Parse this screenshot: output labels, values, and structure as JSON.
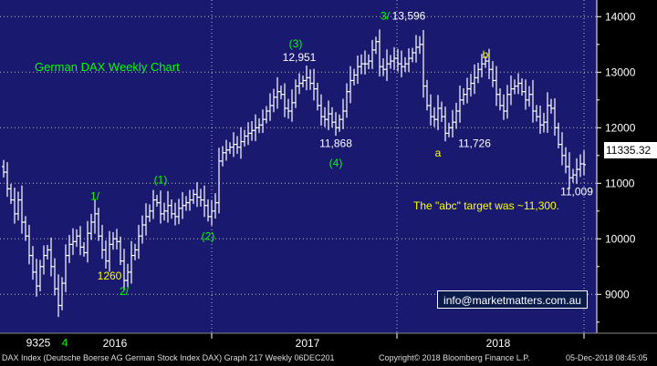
{
  "chart_data": {
    "type": "ohlc",
    "title": "German DAX Weekly Chart",
    "ylim": [
      8300,
      14300
    ],
    "yticks": [
      9000,
      10000,
      11000,
      12000,
      13000,
      14000
    ],
    "xlabels": [
      "2016",
      "2017",
      "2018"
    ],
    "last_price": "11335.32",
    "grid": true,
    "series": [
      {
        "values": [
          11200,
          10900,
          10700,
          10450,
          10700,
          10300,
          10050,
          9700,
          9400,
          9150,
          9500,
          9700,
          9800,
          9500,
          9100,
          8800,
          9200,
          9700,
          9900,
          9950,
          10050,
          9850,
          9750,
          10100,
          10300,
          10450,
          10050,
          9800,
          9600,
          9900,
          10000,
          9950,
          9600,
          9250,
          9400,
          9700,
          9800,
          10050,
          10250,
          10400,
          10500,
          10700,
          10650,
          10450,
          10500,
          10600,
          10450,
          10400,
          10550,
          10600,
          10650,
          10700,
          10800,
          10750,
          10700,
          10600,
          10400,
          10500,
          10650,
          11400,
          11550,
          11600,
          11650,
          11700,
          11650,
          11750,
          11850,
          11900,
          11950,
          12000,
          12050,
          12150,
          12300,
          12400,
          12550,
          12650,
          12600,
          12350,
          12300,
          12450,
          12750,
          12800,
          12850,
          12900,
          12800,
          12700,
          12400,
          12200,
          12150,
          12250,
          12100,
          12000,
          12150,
          12300,
          12650,
          12850,
          12950,
          13100,
          13150,
          13150,
          13200,
          13400,
          13550,
          13100,
          13050,
          13150,
          13200,
          13250,
          13150,
          13100,
          13150,
          13250,
          13350,
          13450,
          13500,
          12750,
          12400,
          12200,
          12150,
          12350,
          12200,
          11900,
          12000,
          12100,
          12300,
          12500,
          12600,
          12700,
          12800,
          12900,
          13050,
          13150,
          13200,
          13050,
          12850,
          12600,
          12400,
          12300,
          12600,
          12700,
          12750,
          12800,
          12650,
          12500,
          12600,
          12300,
          12200,
          12050,
          12100,
          12400,
          12350,
          12000,
          11700,
          11500,
          11300,
          11100,
          11150,
          11250,
          11350,
          11335
        ]
      }
    ],
    "annotations": [
      {
        "text": "9325",
        "color": "#ffffff",
        "x_idx": 15,
        "y": 8520
      },
      {
        "text": "4",
        "color": "#00ff00",
        "x_idx": 15,
        "y": 8520
      },
      {
        "text": "1/",
        "color": "#00ff00",
        "x_idx": 25,
        "y": 10700
      },
      {
        "text": "1260",
        "color": "#ffff00",
        "x_idx": 29,
        "y": 9270
      },
      {
        "text": "2/",
        "color": "#00ff00",
        "x_idx": 33,
        "y": 8990
      },
      {
        "text": "(1)",
        "color": "#00ff00",
        "x_idx": 43,
        "y": 11000
      },
      {
        "text": "(2)",
        "color": "#00ff00",
        "x_idx": 56,
        "y": 9980
      },
      {
        "text": "(3)",
        "color": "#00ff00",
        "x_idx": 81,
        "y": 13450
      },
      {
        "text": "12,951",
        "color": "#ffffff",
        "x_idx": 81,
        "y": 13200
      },
      {
        "text": "11,868",
        "color": "#ffffff",
        "x_idx": 91,
        "y": 11650
      },
      {
        "text": "(4)",
        "color": "#00ff00",
        "x_idx": 91,
        "y": 11300
      },
      {
        "text": "3/",
        "color": "#00ff00",
        "x_idx": 103,
        "y": 13950
      },
      {
        "text": "13,596",
        "color": "#ffffff",
        "x_idx": 111,
        "y": 13950
      },
      {
        "text": "a",
        "color": "#ffff00",
        "x_idx": 119,
        "y": 11480
      },
      {
        "text": "11,726",
        "color": "#ffffff",
        "x_idx": 129,
        "y": 11650
      },
      {
        "text": "b",
        "color": "#ffff00",
        "x_idx": 132,
        "y": 13250
      },
      {
        "text": "11,009",
        "color": "#ffffff",
        "x_idx": 157,
        "y": 10780
      }
    ]
  },
  "info_email": "info@marketmatters.com.au",
  "target_note": "The \"abc\" target was ~11,300.",
  "footer": {
    "left": "DAX Index (Deutsche Boerse AG German Stock Index DAX) Graph 217  Weekly 06DEC201",
    "middle": "Copyright© 2018 Bloomberg Finance L.P.",
    "right": "05-Dec-2018 08:45:05"
  },
  "colors": {
    "background": "#191970",
    "grid": "#ffffff",
    "bars": "#ffffff",
    "wave_labels": "#00ff00",
    "abc_labels": "#ffff00"
  }
}
